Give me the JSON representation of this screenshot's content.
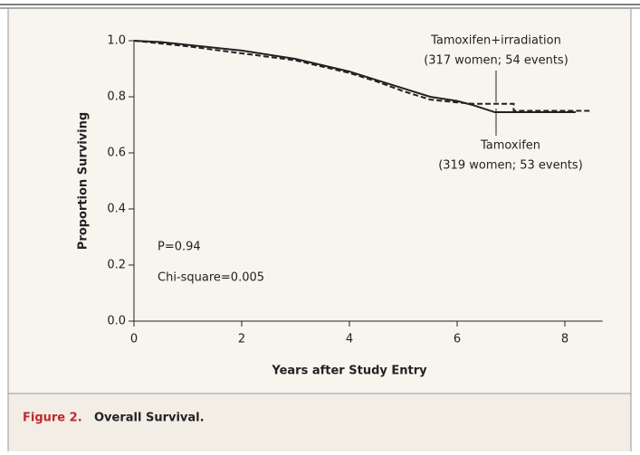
{
  "chart_data": {
    "type": "line",
    "figure_label": "Figure 2.",
    "caption": "Overall Survival.",
    "xlabel": "Years after Study Entry",
    "ylabel": "Proportion Surviving",
    "xlim": [
      0,
      8.7
    ],
    "ylim": [
      0,
      1
    ],
    "xticks": [
      0,
      2,
      4,
      6,
      8
    ],
    "yticks": [
      {
        "value": 0,
        "label": "0.0"
      },
      {
        "value": 0.2,
        "label": "0.2"
      },
      {
        "value": 0.4,
        "label": "0.4"
      },
      {
        "value": 0.6,
        "label": "0.6"
      },
      {
        "value": 0.8,
        "label": "0.8"
      },
      {
        "value": 1,
        "label": "1.0"
      }
    ],
    "series": [
      {
        "name": "Tamoxifen+irradiation",
        "note": "(317 women; 54 events)",
        "color": "#222222",
        "dash": true,
        "x": [
          0,
          0.5,
          1,
          2,
          3,
          4,
          4.5,
          5,
          5.5,
          6,
          6.3,
          6.6,
          7.05,
          7.05,
          8.5
        ],
        "values": [
          1.0,
          0.99,
          0.98,
          0.955,
          0.93,
          0.885,
          0.855,
          0.82,
          0.79,
          0.78,
          0.775,
          0.775,
          0.775,
          0.75,
          0.75
        ]
      },
      {
        "name": "Tamoxifen",
        "note": "(319 women; 53 events)",
        "color": "#222222",
        "dash": false,
        "x": [
          0,
          0.5,
          1,
          2,
          3,
          4,
          4.5,
          5,
          5.5,
          6,
          6.3,
          6.7,
          7.5,
          8.2
        ],
        "values": [
          1.0,
          0.995,
          0.985,
          0.965,
          0.935,
          0.89,
          0.86,
          0.83,
          0.8,
          0.785,
          0.77,
          0.745,
          0.745,
          0.745
        ]
      }
    ],
    "annotations": [
      "P=0.94",
      "Chi-square=0.005"
    ]
  }
}
